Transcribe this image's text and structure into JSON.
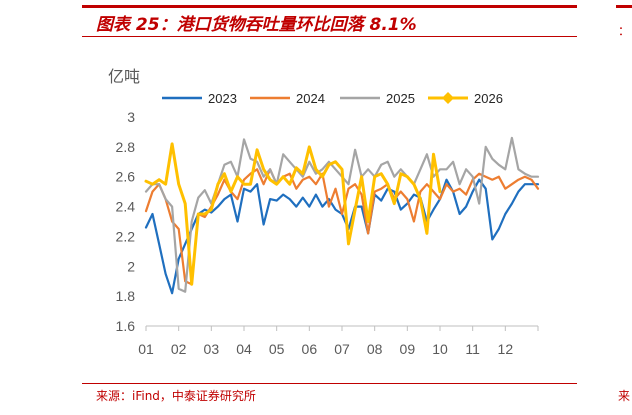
{
  "figure": {
    "title": "图表 25：港口货物吞吐量环比回落 8.1%",
    "source": "来源：iFind，中泰证券研究所",
    "edge_right_top": "：",
    "edge_right_bottom": "来"
  },
  "chart_data": {
    "type": "line",
    "unit": "亿吨",
    "xlabel": "",
    "ylabel": "",
    "ylim": [
      1.6,
      3.0
    ],
    "yticks": [
      "1.6",
      "1.8",
      "2",
      "2.2",
      "2.4",
      "2.6",
      "2.8",
      "3"
    ],
    "x_ticks": [
      "01",
      "02",
      "03",
      "04",
      "05",
      "06",
      "07",
      "08",
      "09",
      "10",
      "11",
      "12"
    ],
    "x_range": [
      0,
      12
    ],
    "grid": false,
    "legend_position": "top",
    "series": [
      {
        "name": "2023",
        "color": "#1f6fbf",
        "x": [
          0,
          0.2,
          0.4,
          0.6,
          0.8,
          1.0,
          1.2,
          1.4,
          1.6,
          1.8,
          2.0,
          2.2,
          2.4,
          2.6,
          2.8,
          3.0,
          3.2,
          3.4,
          3.6,
          3.8,
          4.0,
          4.2,
          4.4,
          4.6,
          4.8,
          5.0,
          5.2,
          5.4,
          5.6,
          5.8,
          6.0,
          6.2,
          6.4,
          6.6,
          6.8,
          7.0,
          7.2,
          7.4,
          7.6,
          7.8,
          8.0,
          8.2,
          8.4,
          8.6,
          8.8,
          9.0,
          9.2,
          9.4,
          9.6,
          9.8,
          10.0,
          10.2,
          10.4,
          10.6,
          10.8,
          11.0,
          11.2,
          11.4,
          11.6,
          11.8,
          12.0
        ],
        "values": [
          2.26,
          2.35,
          2.15,
          1.95,
          1.82,
          2.05,
          2.15,
          2.25,
          2.35,
          2.38,
          2.36,
          2.4,
          2.45,
          2.48,
          2.3,
          2.52,
          2.5,
          2.55,
          2.28,
          2.45,
          2.44,
          2.48,
          2.45,
          2.4,
          2.46,
          2.4,
          2.48,
          2.4,
          2.45,
          2.38,
          2.35,
          2.25,
          2.4,
          2.4,
          2.22,
          2.48,
          2.44,
          2.52,
          2.5,
          2.38,
          2.42,
          2.48,
          2.46,
          2.3,
          2.38,
          2.45,
          2.58,
          2.5,
          2.35,
          2.4,
          2.5,
          2.58,
          2.52,
          2.18,
          2.25,
          2.35,
          2.42,
          2.5,
          2.55,
          2.55,
          2.55
        ]
      },
      {
        "name": "2024",
        "color": "#ed7d31",
        "x": [
          0,
          0.2,
          0.4,
          0.6,
          0.8,
          1.0,
          1.2,
          1.4,
          1.6,
          1.8,
          2.0,
          2.2,
          2.4,
          2.6,
          2.8,
          3.0,
          3.2,
          3.4,
          3.6,
          3.8,
          4.0,
          4.2,
          4.4,
          4.6,
          4.8,
          5.0,
          5.2,
          5.4,
          5.6,
          5.8,
          6.0,
          6.2,
          6.4,
          6.6,
          6.8,
          7.0,
          7.2,
          7.4,
          7.6,
          7.8,
          8.0,
          8.2,
          8.4,
          8.6,
          8.8,
          9.0,
          9.2,
          9.4,
          9.6,
          9.8,
          10.0,
          10.2,
          10.4,
          10.6,
          10.8,
          11.0,
          11.2,
          11.4,
          11.6,
          11.8,
          12.0
        ],
        "values": [
          2.37,
          2.5,
          2.55,
          2.45,
          2.3,
          2.25,
          1.9,
          1.88,
          2.35,
          2.33,
          2.4,
          2.48,
          2.58,
          2.5,
          2.45,
          2.58,
          2.62,
          2.65,
          2.55,
          2.65,
          2.55,
          2.6,
          2.62,
          2.52,
          2.58,
          2.6,
          2.55,
          2.62,
          2.4,
          2.52,
          2.35,
          2.52,
          2.55,
          2.48,
          2.22,
          2.5,
          2.52,
          2.55,
          2.45,
          2.5,
          2.45,
          2.3,
          2.5,
          2.55,
          2.5,
          2.45,
          2.55,
          2.5,
          2.52,
          2.48,
          2.58,
          2.62,
          2.6,
          2.58,
          2.6,
          2.52,
          2.55,
          2.58,
          2.6,
          2.58,
          2.52
        ]
      },
      {
        "name": "2025",
        "color": "#a5a5a5",
        "x": [
          0,
          0.2,
          0.4,
          0.6,
          0.8,
          1.0,
          1.2,
          1.4,
          1.6,
          1.8,
          2.0,
          2.2,
          2.4,
          2.6,
          2.8,
          3.0,
          3.2,
          3.4,
          3.6,
          3.8,
          4.0,
          4.2,
          4.4,
          4.6,
          4.8,
          5.0,
          5.2,
          5.4,
          5.6,
          5.8,
          6.0,
          6.2,
          6.4,
          6.6,
          6.8,
          7.0,
          7.2,
          7.4,
          7.6,
          7.8,
          8.0,
          8.2,
          8.4,
          8.6,
          8.8,
          9.0,
          9.2,
          9.4,
          9.6,
          9.8,
          10.0,
          10.2,
          10.4,
          10.6,
          10.8,
          11.0,
          11.2,
          11.4,
          11.6,
          11.8,
          12.0
        ],
        "values": [
          2.5,
          2.55,
          2.55,
          2.45,
          2.4,
          1.85,
          1.83,
          2.3,
          2.46,
          2.51,
          2.42,
          2.55,
          2.68,
          2.7,
          2.6,
          2.85,
          2.72,
          2.7,
          2.6,
          2.65,
          2.55,
          2.75,
          2.7,
          2.65,
          2.6,
          2.7,
          2.62,
          2.65,
          2.7,
          2.65,
          2.6,
          2.55,
          2.78,
          2.6,
          2.65,
          2.6,
          2.68,
          2.7,
          2.6,
          2.65,
          2.6,
          2.55,
          2.65,
          2.75,
          2.6,
          2.65,
          2.65,
          2.7,
          2.55,
          2.65,
          2.6,
          2.42,
          2.8,
          2.72,
          2.68,
          2.65,
          2.86,
          2.65,
          2.62,
          2.6,
          2.6
        ]
      },
      {
        "name": "2026",
        "color": "#ffc000",
        "marker": "diamond",
        "x": [
          0,
          0.2,
          0.4,
          0.6,
          0.8,
          1.0,
          1.2,
          1.4,
          1.6,
          1.8,
          2.0,
          2.2,
          2.4,
          2.6,
          2.8,
          3.0,
          3.2,
          3.4,
          3.6,
          3.8,
          4.0,
          4.2,
          4.4,
          4.6,
          4.8,
          5.0,
          5.2,
          5.4,
          5.6,
          5.8,
          6.0,
          6.2,
          6.4,
          6.6,
          6.8,
          7.0,
          7.2,
          7.4,
          7.6,
          7.8,
          8.0,
          8.2,
          8.4,
          8.6,
          8.8,
          9.0
        ],
        "values": [
          2.57,
          2.55,
          2.58,
          2.55,
          2.82,
          2.55,
          2.42,
          1.88,
          2.35,
          2.35,
          2.38,
          2.55,
          2.62,
          2.5,
          2.6,
          2.55,
          2.55,
          2.78,
          2.65,
          2.58,
          2.55,
          2.6,
          2.55,
          2.66,
          2.62,
          2.8,
          2.65,
          2.6,
          2.68,
          2.7,
          2.65,
          2.15,
          2.38,
          2.6,
          2.3,
          2.6,
          2.62,
          2.55,
          2.42,
          2.62,
          2.6,
          2.55,
          2.45,
          2.22,
          2.75,
          2.5
        ]
      }
    ]
  }
}
